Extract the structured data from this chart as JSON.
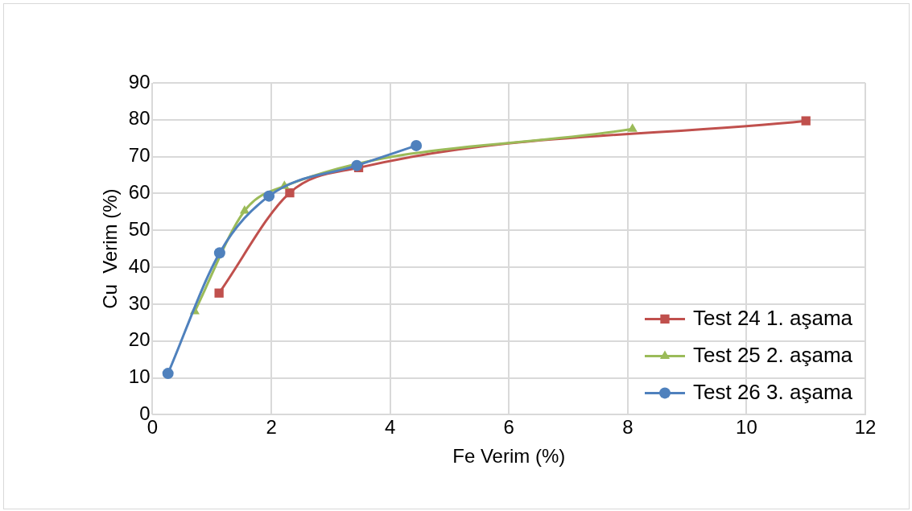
{
  "chart_data": {
    "type": "line",
    "xlabel": "Fe Verim (%)",
    "ylabel": "Cu  Verim (%)",
    "xlim": [
      0,
      12
    ],
    "xticks": [
      0,
      2,
      4,
      6,
      8,
      10,
      12
    ],
    "ylim": [
      0,
      90
    ],
    "yticks": [
      0,
      10,
      20,
      30,
      40,
      50,
      60,
      70,
      80,
      90
    ],
    "grid": true,
    "legend": "bottom right",
    "series": [
      {
        "name": "Test 24 1. aşama",
        "color": "#c0504d",
        "marker": "square",
        "x": [
          1.12,
          2.31,
          3.47,
          11.0
        ],
        "values": [
          33,
          60.2,
          67,
          79.7
        ]
      },
      {
        "name": "Test 25 2. aşama",
        "color": "#9bbb59",
        "marker": "triangle",
        "x": [
          0.71,
          1.55,
          2.22,
          8.08
        ],
        "values": [
          28,
          55.3,
          62,
          77.5
        ]
      },
      {
        "name": "Test 26 3. aşama",
        "color": "#4f81bd",
        "marker": "circle",
        "x": [
          0.26,
          1.13,
          1.96,
          3.44,
          4.44
        ],
        "values": [
          11.2,
          43.9,
          59.3,
          67.6,
          73
        ]
      }
    ]
  }
}
